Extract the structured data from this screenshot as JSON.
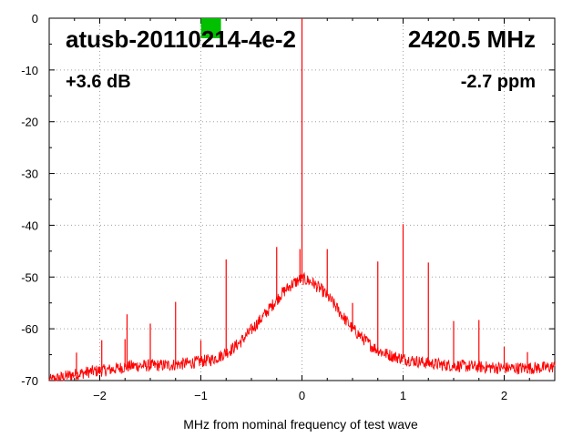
{
  "chart_data": {
    "type": "line",
    "title": "atusb-20110214-4e-2",
    "frequency_label": "2420.5 MHz",
    "gain_label": "+3.6 dB",
    "ppm_label": "-2.7 ppm",
    "xlabel": "MHz from nominal frequency of test wave",
    "ylabel": "",
    "xlim": [
      -2.5,
      2.5
    ],
    "ylim": [
      -70,
      0
    ],
    "x_ticks": [
      -2,
      -1,
      0,
      1,
      2
    ],
    "y_ticks": [
      0,
      -10,
      -20,
      -30,
      -40,
      -50,
      -60,
      -70
    ],
    "grid": true,
    "line_color": "#ff0000",
    "grid_color": "#a0a0a0",
    "marker_color": "#00c000",
    "marker_x": -0.9,
    "series": [
      {
        "envelope": [
          [
            -2.5,
            -70
          ],
          [
            -2.3,
            -69
          ],
          [
            -2.1,
            -68.3
          ],
          [
            -1.9,
            -67.9
          ],
          [
            -1.7,
            -67.2
          ],
          [
            -1.5,
            -67.1
          ],
          [
            -1.3,
            -67.0
          ],
          [
            -1.1,
            -66.6
          ],
          [
            -0.9,
            -66.0
          ],
          [
            -0.8,
            -65.2
          ],
          [
            -0.7,
            -64.0
          ],
          [
            -0.6,
            -62.4
          ],
          [
            -0.5,
            -60.2
          ],
          [
            -0.4,
            -58.0
          ],
          [
            -0.3,
            -55.6
          ],
          [
            -0.2,
            -53.2
          ],
          [
            -0.1,
            -51.4
          ],
          [
            0.0,
            -50.3
          ],
          [
            0.1,
            -51.0
          ],
          [
            0.2,
            -52.6
          ],
          [
            0.3,
            -54.8
          ],
          [
            0.4,
            -57.5
          ],
          [
            0.5,
            -60.0
          ],
          [
            0.6,
            -61.8
          ],
          [
            0.7,
            -63.5
          ],
          [
            0.8,
            -64.6
          ],
          [
            0.9,
            -65.3
          ],
          [
            1.0,
            -65.8
          ],
          [
            1.2,
            -66.5
          ],
          [
            1.4,
            -67.0
          ],
          [
            1.6,
            -67.2
          ],
          [
            1.8,
            -67.4
          ],
          [
            2.0,
            -67.6
          ],
          [
            2.2,
            -67.6
          ],
          [
            2.4,
            -67.5
          ],
          [
            2.5,
            -67.3
          ]
        ],
        "spurs": [
          [
            -2.23,
            -64.6
          ],
          [
            -1.98,
            -62.2
          ],
          [
            -1.75,
            -62.0
          ],
          [
            -1.73,
            -57.2
          ],
          [
            -1.5,
            -59.0
          ],
          [
            -1.25,
            -54.8
          ],
          [
            -1.0,
            -62.2
          ],
          [
            -0.75,
            -46.6
          ],
          [
            -0.5,
            -60.0
          ],
          [
            -0.25,
            -44.2
          ],
          [
            -0.02,
            -44.6
          ],
          [
            0.0,
            0.0
          ],
          [
            0.25,
            -44.6
          ],
          [
            0.5,
            -55.0
          ],
          [
            0.75,
            -47.0
          ],
          [
            1.0,
            -39.8
          ],
          [
            1.25,
            -47.2
          ],
          [
            1.5,
            -58.5
          ],
          [
            1.75,
            -58.3
          ],
          [
            2.0,
            -63.5
          ],
          [
            2.23,
            -64.5
          ]
        ]
      }
    ]
  }
}
